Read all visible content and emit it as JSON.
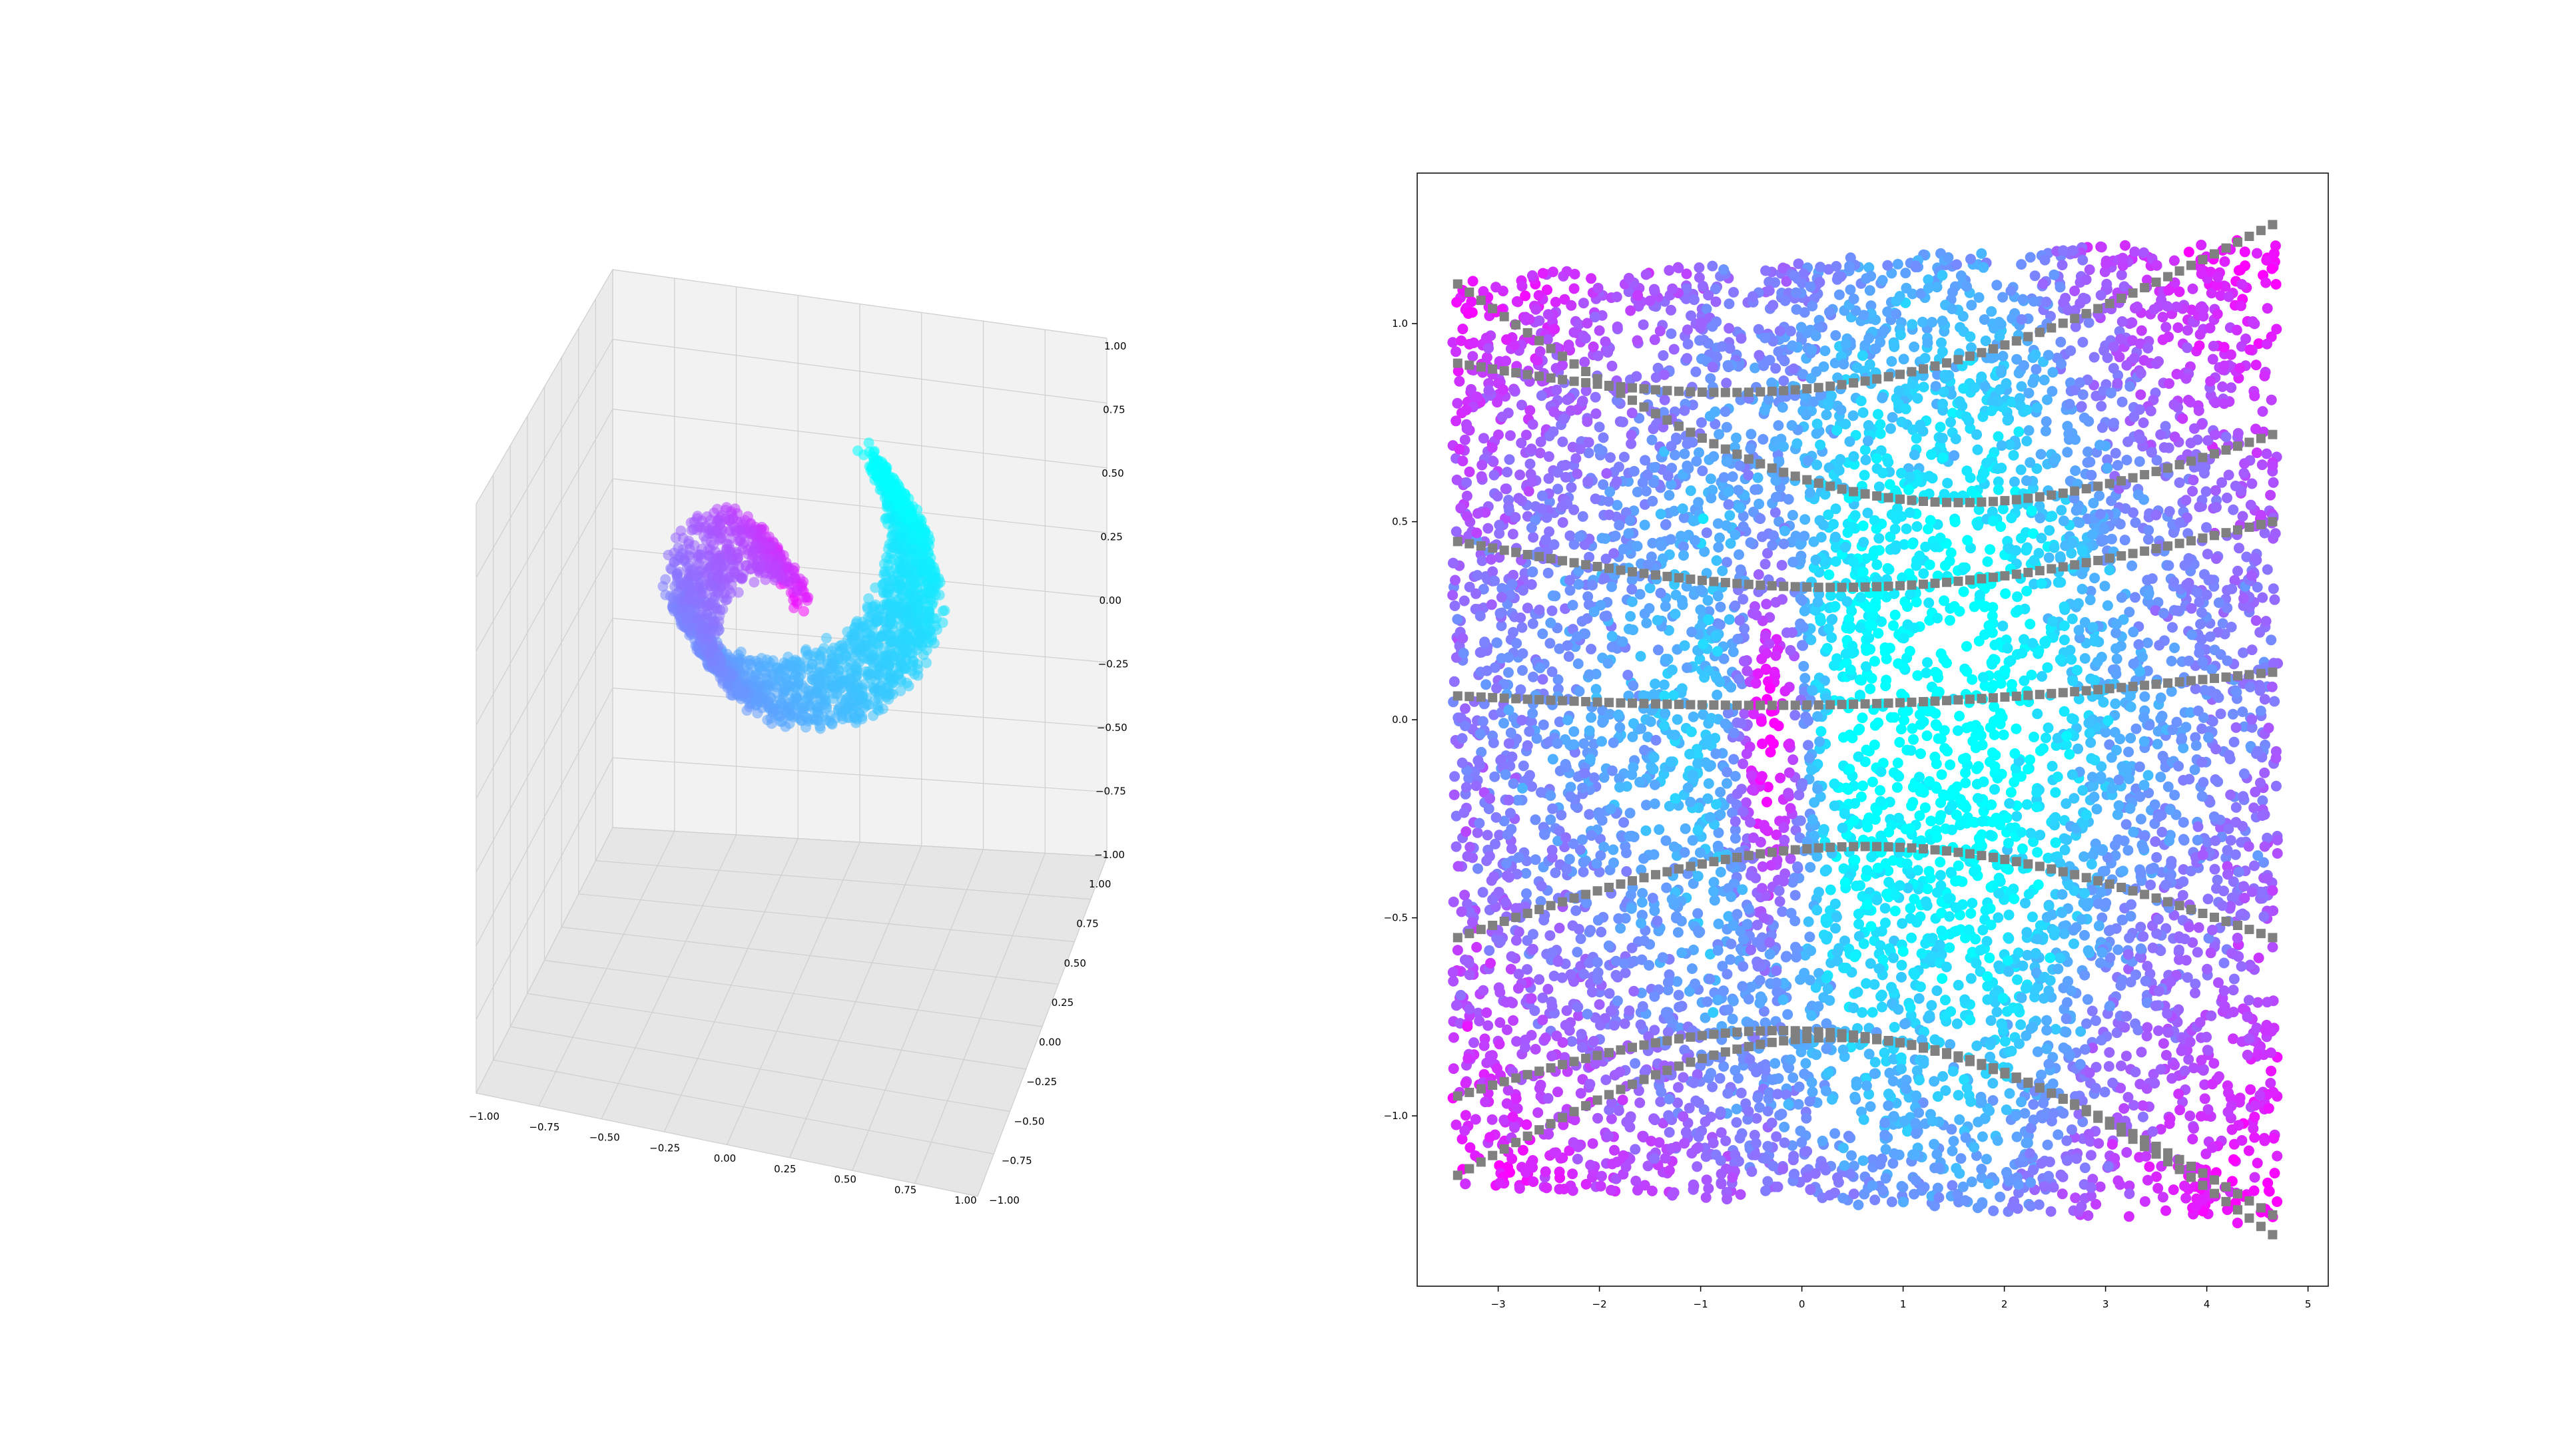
{
  "chart_data": [
    {
      "type": "scatter3d",
      "title": "",
      "description_shape": "swiss-roll spiral",
      "x_ticks": [
        "−1.00",
        "−0.75",
        "−0.50",
        "−0.25",
        "0.00",
        "0.25",
        "0.50",
        "0.75",
        "1.00"
      ],
      "y_ticks": [
        "−1.00",
        "−0.75",
        "−0.50",
        "−0.25",
        "0.00",
        "0.25",
        "0.50",
        "0.75",
        "1.00"
      ],
      "z_ticks": [
        "−1.00",
        "−0.75",
        "−0.50",
        "−0.25",
        "0.00",
        "0.25",
        "0.50",
        "0.75",
        "1.00"
      ],
      "xlim": [
        -1,
        1
      ],
      "ylim": [
        -1,
        1
      ],
      "zlim": [
        -1,
        1
      ],
      "grid": true,
      "colormap": [
        "#00ffff",
        "#ff00ff"
      ],
      "point_count": 2200
    },
    {
      "type": "scatter",
      "title": "",
      "x_ticks": [
        "−3",
        "−2",
        "−1",
        "0",
        "1",
        "2",
        "3",
        "4",
        "5"
      ],
      "y_ticks": [
        "−1.0",
        "−0.5",
        "0.0",
        "0.5",
        "1.0"
      ],
      "xlim": [
        -3.8,
        5.2
      ],
      "ylim": [
        -1.43,
        1.38
      ],
      "grid": false,
      "colormap": [
        "#00ffff",
        "#ff00ff"
      ],
      "point_count": 6500,
      "trajectory_color": "#808080",
      "trajectories": [
        {
          "x0": -3.4,
          "y0": 1.1,
          "x1": 4.65,
          "y1": 0.72,
          "dip": -0.34
        },
        {
          "x0": -3.4,
          "y0": 0.9,
          "x1": 4.65,
          "y1": 1.25,
          "dip": -0.22
        },
        {
          "x0": -3.4,
          "y0": 0.45,
          "x1": 4.65,
          "y1": 0.5,
          "dip": -0.14
        },
        {
          "x0": -3.4,
          "y0": 0.06,
          "x1": 4.65,
          "y1": 0.12,
          "dip": -0.05
        },
        {
          "x0": -3.4,
          "y0": -0.55,
          "x1": 4.65,
          "y1": -0.55,
          "dip": 0.23
        },
        {
          "x0": -3.4,
          "y0": -0.95,
          "x1": 4.65,
          "y1": -1.25,
          "dip": 0.3
        },
        {
          "x0": -3.4,
          "y0": -1.15,
          "x1": 4.65,
          "y1": -1.3,
          "dip": 0.42
        }
      ]
    }
  ]
}
